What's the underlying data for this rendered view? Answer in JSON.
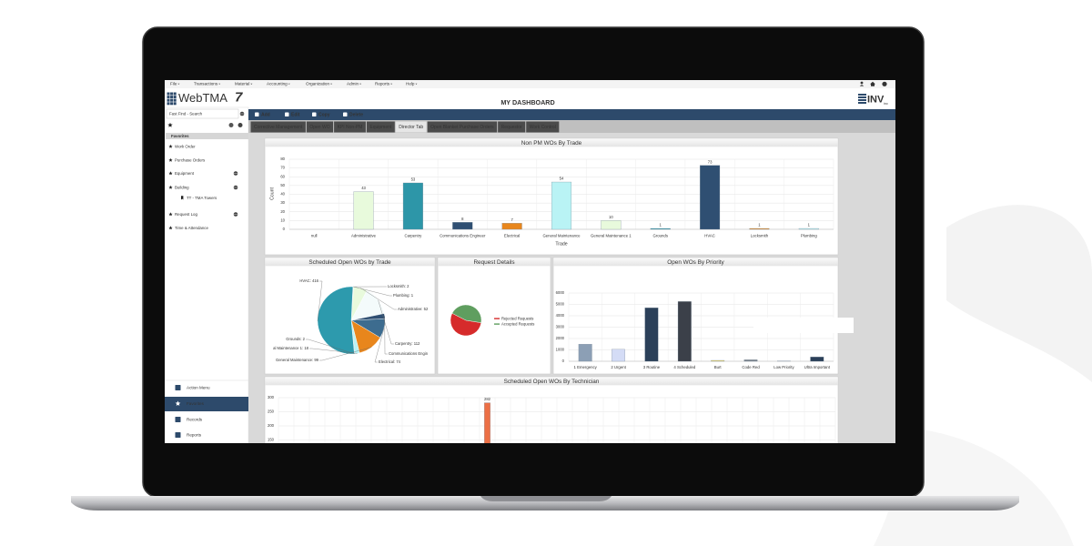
{
  "menu": [
    "File",
    "Transactions",
    "Material",
    "Accounting",
    "Organization",
    "Admin",
    "Reports",
    "Help"
  ],
  "header": {
    "logo": "WebTMA",
    "logo_version": "7",
    "title": "MY DASHBOARD",
    "brand": "INV",
    "brand_suffix": "inc"
  },
  "sidebar": {
    "search_placeholder": "Fast Find - Search",
    "section": "Favorites",
    "items": [
      "Work Order",
      "Purchase Orders",
      "Equipment",
      "Building",
      "TT - TMA Towers",
      "Request Log",
      "Time & Attendance"
    ],
    "nav": [
      "Action Menu",
      "Favorites",
      "Records",
      "Reports"
    ]
  },
  "toolbar": [
    "Add",
    "Edit",
    "Copy",
    "Delete"
  ],
  "tabs": [
    "Corrective Management",
    "Open WO",
    "KPI Non-PM",
    "Equipment",
    "Director Tab",
    "Open Blanket Purchase Orders",
    "Requestor",
    "Work Control"
  ],
  "chart_data": [
    {
      "type": "bar",
      "title": "Non PM WOs By Trade",
      "x_label": "Trade",
      "y_label": "Count",
      "categories": [
        "null",
        "Administrative",
        "Carpentry",
        "Communications Engineer",
        "Electrical",
        "General Maintenance",
        "General Maintenance 1",
        "Grounds",
        "HVAC",
        "Locksmith",
        "Plumbing"
      ],
      "values": [
        null,
        43,
        53,
        8,
        7,
        54,
        10,
        1,
        73,
        1,
        1
      ],
      "palette": [
        "#b9f3f5",
        "#e8fadc",
        "#2d96a8",
        "#2f4f72",
        "#e8861c"
      ],
      "ylim": [
        0,
        80
      ],
      "yticks": [
        0,
        10,
        20,
        30,
        40,
        50,
        60,
        70,
        80
      ],
      "grid": true,
      "show_values": true
    },
    {
      "type": "pie",
      "title": "Scheduled Open WOs by Trade",
      "labels": [
        "Locksmith: 2",
        "Plumbing: 1",
        "Administrative: 52",
        "Carpentry: 112",
        "Communications Engin",
        "Electrical: 74",
        "General Maintenance: 99",
        "al Maintenance 1: 18",
        "Grounds: 2",
        "HVAC: 416"
      ],
      "values": [
        2,
        1,
        52,
        112,
        20,
        74,
        99,
        18,
        2,
        416
      ],
      "colors": [
        "#e8861c",
        "#b9f3f5",
        "#e8fadc",
        "#f4fbfb",
        "#2f4f72",
        "#3d6c8f",
        "#e8861c",
        "#b9f3f5",
        "#2d96a8",
        "#2d9aad"
      ]
    },
    {
      "type": "pie",
      "title": "Request Details",
      "categories": [
        "Rejected Requests",
        "Accepted Requests"
      ],
      "values": [
        55,
        45
      ],
      "colors": [
        "#d62b2b",
        "#5f9e5f"
      ]
    },
    {
      "type": "bar",
      "title": "Open WOs By Priority",
      "categories": [
        "1 Emergency",
        "2 Urgent",
        "3 Routine",
        "4 Scheduled",
        "Burt",
        "Code Red",
        "Low Priority",
        "Ultra Important"
      ],
      "values": [
        1500,
        1050,
        4700,
        5250,
        80,
        130,
        20,
        380
      ],
      "colors": [
        "#8c9fb5",
        "#d4dcf6",
        "#2b4059",
        "#3b4049",
        "#e8d46b",
        "#7a828c",
        "#e5e7ea",
        "#2b4059"
      ],
      "ylim": [
        0,
        6000
      ],
      "yticks": [
        0,
        1000,
        2000,
        3000,
        4000,
        5000,
        6000
      ],
      "grid": true,
      "show_values": false
    },
    {
      "type": "bar",
      "title": "Scheduled Open WOs By Technician",
      "categories": [
        null,
        null,
        null,
        null,
        null,
        null,
        null,
        null,
        null,
        null,
        null,
        null,
        null,
        null,
        null,
        null,
        null,
        null,
        null,
        null,
        null,
        null,
        null,
        null,
        null,
        null,
        null,
        null,
        null,
        null,
        null,
        null,
        null,
        null,
        null,
        null
      ],
      "values": [
        null,
        null,
        null,
        null,
        null,
        null,
        null,
        null,
        null,
        null,
        null,
        null,
        null,
        282,
        null,
        null,
        null,
        null,
        null,
        null,
        null,
        null,
        null,
        null,
        null,
        null,
        null,
        null,
        null,
        null,
        null,
        null,
        null,
        null,
        null,
        null
      ],
      "color": "#ec6f45",
      "ylim": [
        0,
        300
      ],
      "yticks": [
        0,
        50,
        100,
        150,
        200,
        250,
        300
      ],
      "grid": true,
      "show_values": true
    }
  ]
}
